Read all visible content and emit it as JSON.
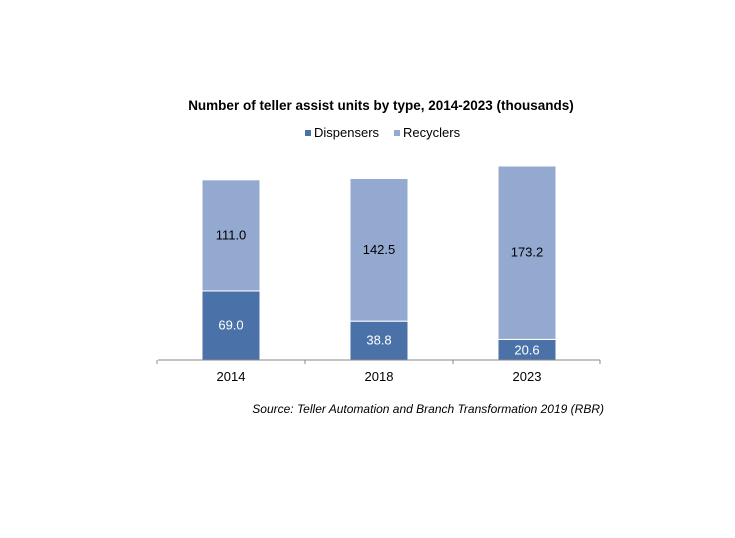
{
  "chart_data": {
    "type": "bar",
    "stacked": true,
    "title": "Number of teller assist units by type, 2014-2023 (thousands)",
    "categories": [
      "2014",
      "2018",
      "2023"
    ],
    "series": [
      {
        "name": "Dispensers",
        "values": [
          69.0,
          38.8,
          20.6
        ],
        "color": "#4a72a8",
        "label_color": "#ffffff"
      },
      {
        "name": "Recyclers",
        "values": [
          111.0,
          142.5,
          173.2
        ],
        "color": "#94a9cf",
        "label_color": "#000000"
      }
    ],
    "data_labels": [
      [
        "69.0",
        "38.8",
        "20.6"
      ],
      [
        "111.0",
        "142.5",
        "173.2"
      ]
    ],
    "legend_position": "top-center",
    "grid": false,
    "ylim": [
      0,
      193.8
    ],
    "source": "Source: Teller Automation and Branch Transformation 2019 (RBR)"
  }
}
